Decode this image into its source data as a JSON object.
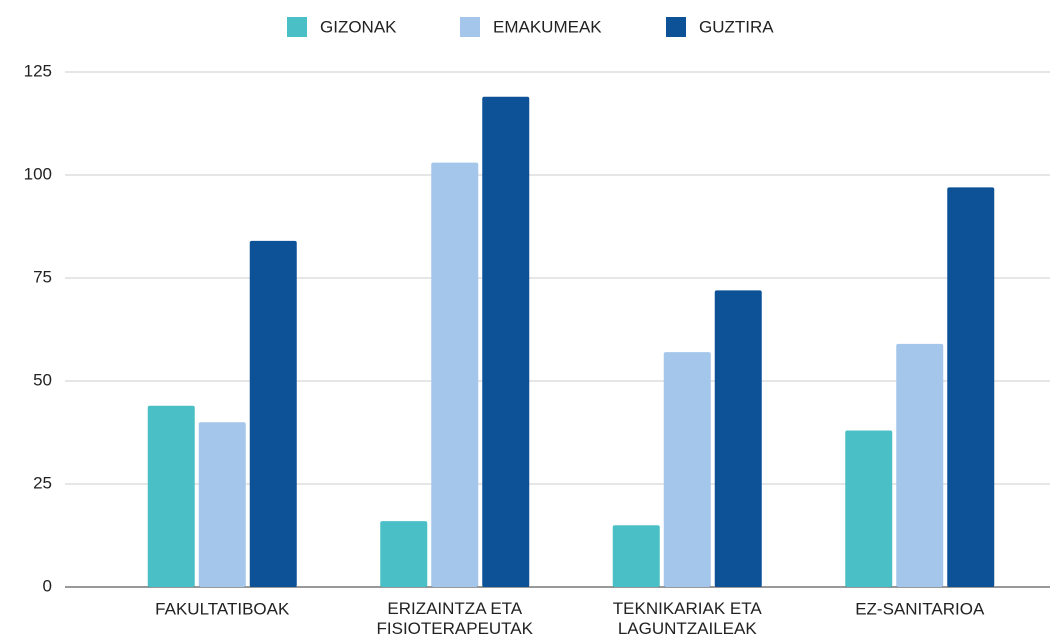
{
  "chart_data": {
    "type": "bar",
    "categories": [
      "FAKULTATIBOAK",
      "ERIZAINTZA ETA FISIOTERAPEUTAK",
      "TEKNIKARIAK ETA LAGUNTZAILEAK",
      "EZ-SANITARIOA"
    ],
    "series": [
      {
        "name": "GIZONAK",
        "color": "#4bbfc6",
        "values": [
          44,
          16,
          15,
          38
        ]
      },
      {
        "name": "EMAKUMEAK",
        "color": "#a4c6ea",
        "values": [
          40,
          103,
          57,
          59
        ]
      },
      {
        "name": "GUZTIRA",
        "color": "#0d5196",
        "values": [
          84,
          119,
          72,
          97
        ]
      }
    ],
    "ylim": [
      0,
      125
    ],
    "yticks": [
      0,
      25,
      50,
      75,
      100,
      125
    ],
    "grid": true,
    "legend": "top"
  }
}
